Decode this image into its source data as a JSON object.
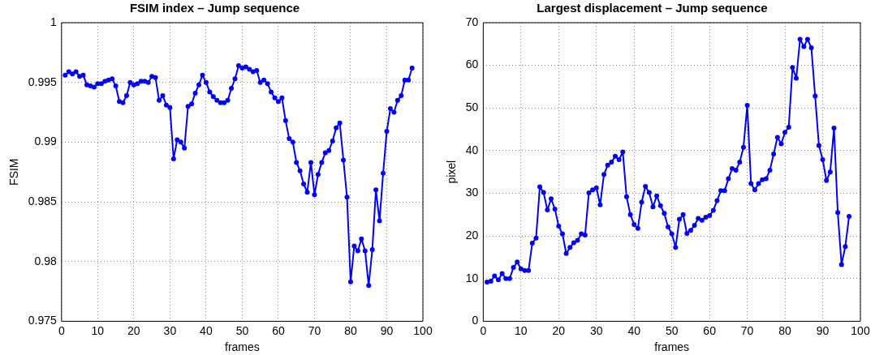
{
  "chart_data": [
    {
      "type": "line",
      "title": "FSIM index – Jump sequence",
      "xlabel": "frames",
      "ylabel": "FSIM",
      "x": [
        1,
        2,
        3,
        4,
        5,
        6,
        7,
        8,
        9,
        10,
        11,
        12,
        13,
        14,
        15,
        16,
        17,
        18,
        19,
        20,
        21,
        22,
        23,
        24,
        25,
        26,
        27,
        28,
        29,
        30,
        31,
        32,
        33,
        34,
        35,
        36,
        37,
        38,
        39,
        40,
        41,
        42,
        43,
        44,
        45,
        46,
        47,
        48,
        49,
        50,
        51,
        52,
        53,
        54,
        55,
        56,
        57,
        58,
        59,
        60,
        61,
        62,
        63,
        64,
        65,
        66,
        67,
        68,
        69,
        70,
        71,
        72,
        73,
        74,
        75,
        76,
        77,
        78,
        79,
        80,
        81,
        82,
        83,
        84,
        85,
        86,
        87,
        88,
        89,
        90,
        91,
        92,
        93,
        94,
        95,
        96,
        97
      ],
      "series": [
        {
          "color": "#0000ff",
          "values": [
            0.9956,
            0.9959,
            0.9957,
            0.9959,
            0.9955,
            0.9956,
            0.9948,
            0.9947,
            0.9946,
            0.9949,
            0.9949,
            0.9951,
            0.9952,
            0.9953,
            0.9947,
            0.9934,
            0.9933,
            0.9939,
            0.995,
            0.9948,
            0.9949,
            0.9951,
            0.9951,
            0.995,
            0.9955,
            0.9954,
            0.9935,
            0.9939,
            0.9931,
            0.9929,
            0.9886,
            0.9902,
            0.99,
            0.9895,
            0.993,
            0.9932,
            0.9941,
            0.9948,
            0.9956,
            0.995,
            0.9942,
            0.9938,
            0.9935,
            0.9933,
            0.9933,
            0.9935,
            0.9945,
            0.9953,
            0.9964,
            0.9962,
            0.9963,
            0.9961,
            0.9959,
            0.996,
            0.995,
            0.9952,
            0.9949,
            0.9942,
            0.9937,
            0.9934,
            0.9937,
            0.9918,
            0.9903,
            0.99,
            0.9883,
            0.9876,
            0.9865,
            0.9858,
            0.9883,
            0.9856,
            0.9873,
            0.9883,
            0.9891,
            0.9893,
            0.9901,
            0.9912,
            0.9916,
            0.9885,
            0.9854,
            0.9783,
            0.9813,
            0.9809,
            0.9819,
            0.9809,
            0.978,
            0.981,
            0.986,
            0.9834,
            0.9874,
            0.9909,
            0.9928,
            0.9925,
            0.9935,
            0.9939,
            0.9952,
            0.9952,
            0.9962
          ]
        }
      ],
      "xlim": [
        0,
        100
      ],
      "xticks": [
        0,
        10,
        20,
        30,
        40,
        50,
        60,
        70,
        80,
        90,
        100
      ],
      "ylim": [
        0.975,
        1
      ],
      "yticks": [
        0.975,
        0.98,
        0.985,
        0.99,
        0.995,
        1
      ],
      "grid": true,
      "legend": false,
      "marker": "circle",
      "line_style": "solid"
    },
    {
      "type": "line",
      "title": "Largest displacement – Jump sequence",
      "xlabel": "frames",
      "ylabel": "pixel",
      "x": [
        1,
        2,
        3,
        4,
        5,
        6,
        7,
        8,
        9,
        10,
        11,
        12,
        13,
        14,
        15,
        16,
        17,
        18,
        19,
        20,
        21,
        22,
        23,
        24,
        25,
        26,
        27,
        28,
        29,
        30,
        31,
        32,
        33,
        34,
        35,
        36,
        37,
        38,
        39,
        40,
        41,
        42,
        43,
        44,
        45,
        46,
        47,
        48,
        49,
        50,
        51,
        52,
        53,
        54,
        55,
        56,
        57,
        58,
        59,
        60,
        61,
        62,
        63,
        64,
        65,
        66,
        67,
        68,
        69,
        70,
        71,
        72,
        73,
        74,
        75,
        76,
        77,
        78,
        79,
        80,
        81,
        82,
        83,
        84,
        85,
        86,
        87,
        88,
        89,
        90,
        91,
        92,
        93,
        94,
        95,
        96,
        97
      ],
      "series": [
        {
          "color": "#0000ff",
          "values": [
            9.2,
            9.4,
            10.6,
            9.7,
            11.2,
            10,
            10,
            12.6,
            13.9,
            12.3,
            11.9,
            11.9,
            18.3,
            19.5,
            31.5,
            30.2,
            26.1,
            28.7,
            26.3,
            22.3,
            20.5,
            15.9,
            17.3,
            18.4,
            19,
            20.5,
            20.2,
            30.1,
            30.8,
            31.3,
            27.3,
            34.4,
            36.6,
            37.3,
            38.7,
            37.9,
            39.7,
            29.2,
            25,
            22.7,
            21.8,
            27.9,
            31.6,
            30.2,
            26.8,
            29.4,
            27.1,
            25.3,
            22.1,
            20.5,
            17.3,
            23.9,
            25,
            20.6,
            21.3,
            22.5,
            24.1,
            23.7,
            24.4,
            24.8,
            26,
            28.3,
            30.6,
            30.6,
            33.4,
            35.8,
            35.4,
            37.3,
            40.8,
            50.6,
            32.3,
            30.8,
            32.3,
            33.2,
            33.4,
            35.4,
            39.2,
            43.1,
            41.6,
            44.3,
            45.5,
            59.5,
            57,
            66.1,
            64.4,
            66.1,
            64.1,
            52.8,
            41.2,
            37.9,
            33,
            35,
            45.3,
            25.5,
            13.3,
            17.5,
            24.6
          ]
        }
      ],
      "xlim": [
        0,
        100
      ],
      "xticks": [
        0,
        10,
        20,
        30,
        40,
        50,
        60,
        70,
        80,
        90,
        100
      ],
      "ylim": [
        0,
        70
      ],
      "yticks": [
        0,
        10,
        20,
        30,
        40,
        50,
        60,
        70
      ],
      "grid": true,
      "legend": false,
      "marker": "circle",
      "line_style": "solid"
    }
  ]
}
